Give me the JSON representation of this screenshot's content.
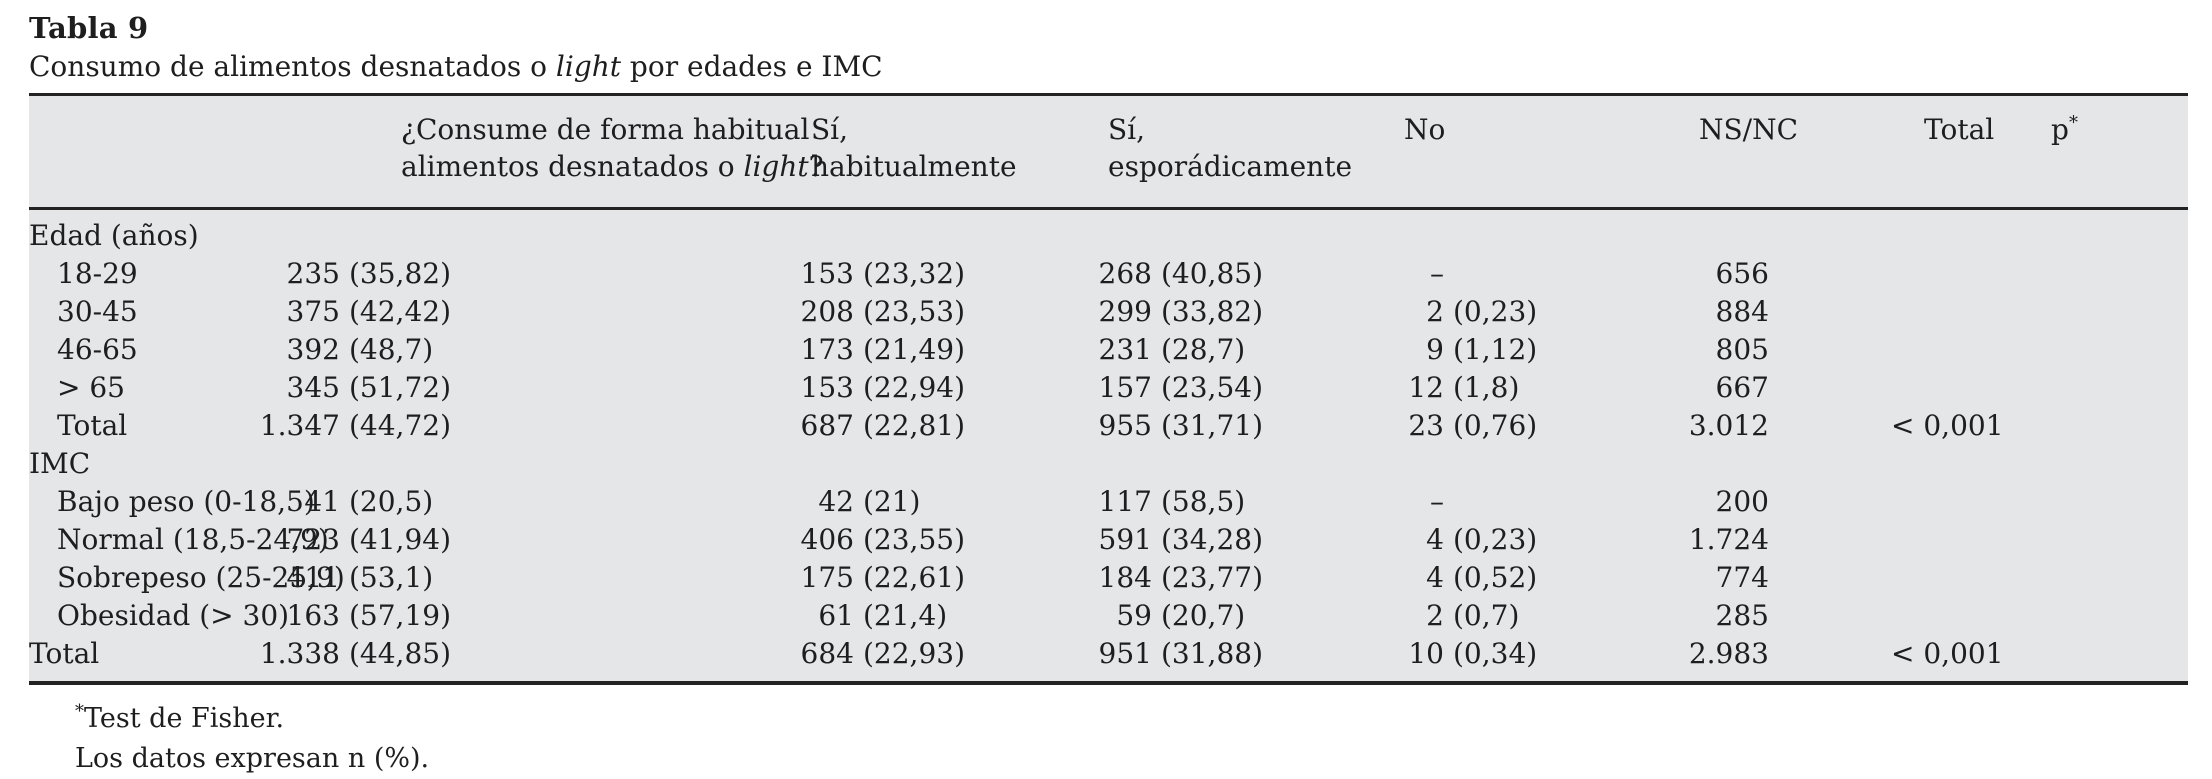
{
  "title": "Tabla 9",
  "subtitle": {
    "prefix": "Consumo de alimentos desnatados o ",
    "italic": "light",
    "suffix": " por edades e IMC"
  },
  "table": {
    "headers": {
      "q1": "¿Consume de forma habitual",
      "q2a": "alimentos desnatados o ",
      "q2b": "light",
      "q2c": "?",
      "si_hab_1": "Sí,",
      "si_hab_2": "habitualmente",
      "si_esp_1": "Sí,",
      "si_esp_2": "esporádicamente",
      "no": "No",
      "nsnc": "NS/NC",
      "total": "Total",
      "p": "p",
      "p_sup": "*"
    },
    "rows": [
      {
        "label": "Edad (años)"
      },
      {
        "label": "18-29",
        "c2n": "235",
        "c2p": "(35,82)",
        "c3n": "153",
        "c3p": "(23,32)",
        "c4n": "268",
        "c4p": "(40,85)",
        "c5n": "–",
        "c5p": "",
        "ns": "656",
        "total": ""
      },
      {
        "label": "30-45",
        "c2n": "375",
        "c2p": "(42,42)",
        "c3n": "208",
        "c3p": "(23,53)",
        "c4n": "299",
        "c4p": "(33,82)",
        "c5n": "2",
        "c5p": "(0,23)",
        "ns": "884",
        "total": ""
      },
      {
        "label": "46-65",
        "c2n": "392",
        "c2p": "(48,7)",
        "c3n": "173",
        "c3p": "(21,49)",
        "c4n": "231",
        "c4p": "(28,7)",
        "c5n": "9",
        "c5p": "(1,12)",
        "ns": "805",
        "total": ""
      },
      {
        "label": "> 65",
        "c2n": "345",
        "c2p": "(51,72)",
        "c3n": "153",
        "c3p": "(22,94)",
        "c4n": "157",
        "c4p": "(23,54)",
        "c5n": "12",
        "c5p": "(1,8)",
        "ns": "667",
        "total": ""
      },
      {
        "label": "Total",
        "c2n": "1.347",
        "c2p": "(44,72)",
        "c3n": "687",
        "c3p": "(22,81)",
        "c4n": "955",
        "c4p": "(31,71)",
        "c5n": "23",
        "c5p": "(0,76)",
        "ns": "3.012",
        "total": "< 0,001"
      },
      {
        "label": "IMC"
      },
      {
        "label": "Bajo peso (0-18,5)",
        "c2n": "41",
        "c2p": "(20,5)",
        "c3n": "42",
        "c3p": "(21)",
        "c4n": "117",
        "c4p": "(58,5)",
        "c5n": "–",
        "c5p": "",
        "ns": "200",
        "total": ""
      },
      {
        "label": "Normal (18,5-24,9)",
        "c2n": "723",
        "c2p": "(41,94)",
        "c3n": "406",
        "c3p": "(23,55)",
        "c4n": "591",
        "c4p": "(34,28)",
        "c5n": "4",
        "c5p": "(0,23)",
        "ns": "1.724",
        "total": ""
      },
      {
        "label": "Sobrepeso (25-25,9)",
        "c2n": "411",
        "c2p": "(53,1)",
        "c3n": "175",
        "c3p": "(22,61)",
        "c4n": "184",
        "c4p": "(23,77)",
        "c5n": "4",
        "c5p": "(0,52)",
        "ns": "774",
        "total": ""
      },
      {
        "label": "Obesidad (> 30)",
        "c2n": "163",
        "c2p": "(57,19)",
        "c3n": "61",
        "c3p": "(21,4)",
        "c4n": "59",
        "c4p": "(20,7)",
        "c5n": "2",
        "c5p": "(0,7)",
        "ns": "285",
        "total": ""
      },
      {
        "label": "Total",
        "c2n": "1.338",
        "c2p": "(44,85)",
        "c3n": "684",
        "c3p": "(22,93)",
        "c4n": "951",
        "c4p": "(31,88)",
        "c5n": "10",
        "c5p": "(0,34)",
        "ns": "2.983",
        "total": "< 0,001"
      }
    ]
  },
  "footnotes": {
    "sup": "*",
    "line1": "Test de Fisher.",
    "line2": "Los datos expresan n (%)."
  }
}
